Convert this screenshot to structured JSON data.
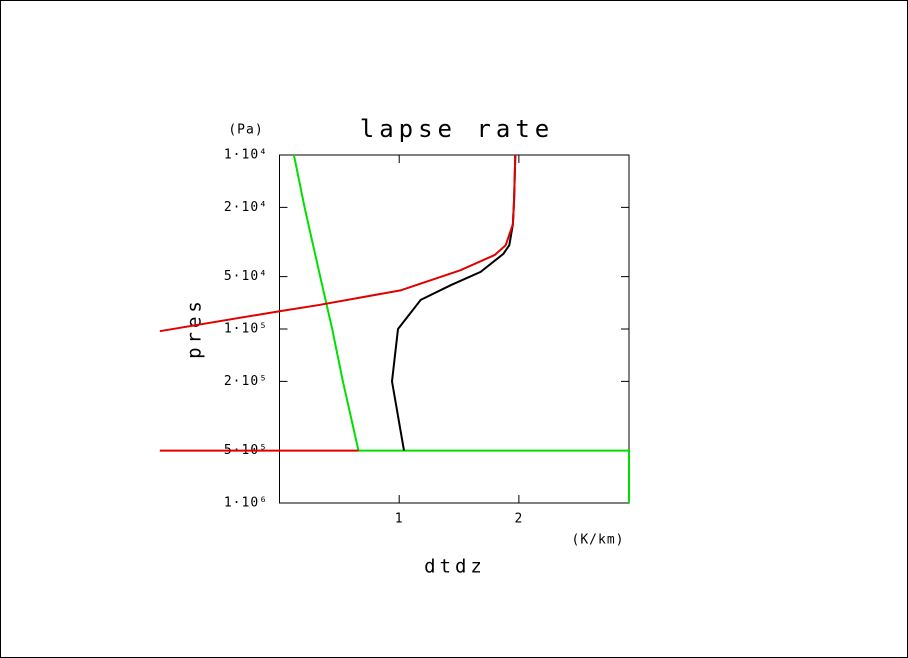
{
  "chart_data": {
    "type": "line",
    "title": "lapse rate",
    "xlabel": "dtdz",
    "xunit": "(K/km)",
    "ylabel": "pres",
    "yunit": "(Pa)",
    "ylog": true,
    "xlim": [
      0,
      2.92
    ],
    "xticks": [
      1,
      2
    ],
    "ylim": [
      1000000,
      10000
    ],
    "yticks": [
      {
        "value": 10000,
        "label": "1·10⁴"
      },
      {
        "value": 20000,
        "label": "2·10⁴"
      },
      {
        "value": 50000,
        "label": "5·10⁴"
      },
      {
        "value": 100000,
        "label": "1·10⁵"
      },
      {
        "value": 200000,
        "label": "2·10⁵"
      },
      {
        "value": 500000,
        "label": "5·10⁵"
      },
      {
        "value": 1000000,
        "label": "1·10⁶"
      }
    ],
    "series": [
      {
        "color": "#00e000",
        "x": [
          0.12,
          0.21,
          0.34,
          0.44,
          0.53,
          0.66,
          2.92,
          2.92
        ],
        "values": [
          10000,
          20000,
          50000,
          100000,
          200000,
          500000,
          500000,
          1000000
        ]
      },
      {
        "color": "#000000",
        "x": [
          1.04,
          0.94,
          0.99,
          1.18,
          1.43,
          1.68,
          1.87,
          1.92,
          1.95,
          1.96,
          1.97
        ],
        "values": [
          500000,
          200000,
          100000,
          68000,
          56000,
          47000,
          37000,
          33000,
          25000,
          18000,
          10000
        ]
      },
      {
        "color": "#e00000",
        "x": [
          1.97,
          1.96,
          1.95,
          1.89,
          1.8,
          1.51,
          1.01,
          0.32,
          0.0,
          -1.0,
          null,
          -1.0,
          0.66
        ],
        "values": [
          10000,
          18000,
          25000,
          33000,
          37500,
          46000,
          60000,
          73000,
          79000,
          103000,
          null,
          500000,
          500000
        ]
      }
    ]
  }
}
